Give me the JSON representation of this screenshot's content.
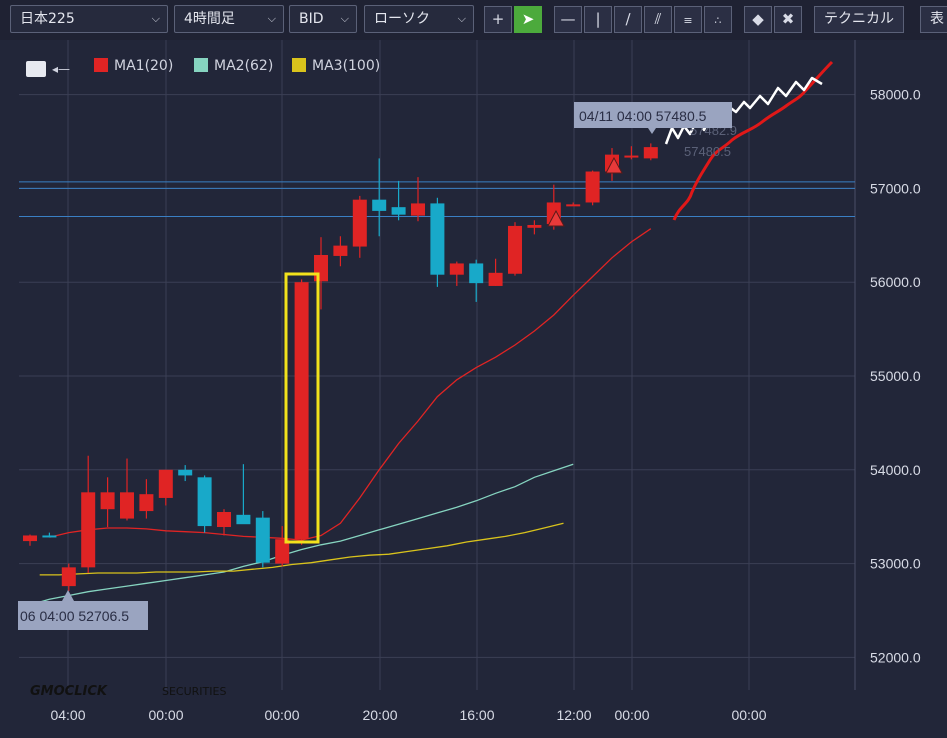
{
  "toolbar": {
    "symbol": "日本225",
    "timeframe": "4時間足",
    "price_type": "BID",
    "chart_style": "ローソク",
    "technical_label": "テクニカル",
    "overflow_label": "表"
  },
  "legend": {
    "ma1": {
      "label": "MA1(20)",
      "color": "#e02424"
    },
    "ma2": {
      "label": "MA2(62)",
      "color": "#86d4c0"
    },
    "ma3": {
      "label": "MA3(100)",
      "color": "#d9c31c"
    }
  },
  "tooltips": {
    "top": "04/11 04:00 57480.5",
    "bottom": "06 04:00 52706.5",
    "ghost1": "57482.9",
    "ghost2": "57480.5"
  },
  "watermark": {
    "brand": "GMOCLICK",
    "sub": "SECURITIES"
  },
  "colors": {
    "up": "#e02424",
    "down": "#18a9c9",
    "grid": "#3b3f55",
    "hline": "#3a7fc4",
    "highlight": "#f2e21c"
  },
  "chart_data": {
    "type": "candlestick",
    "yticks": [
      "58000.0",
      "57000.0",
      "56000.0",
      "55000.0",
      "54000.0",
      "53000.0",
      "52000.0"
    ],
    "ylim": [
      51700,
      58450
    ],
    "xticks": [
      "04:00",
      "00:00",
      "00:00",
      "20:00",
      "16:00",
      "12:00",
      "00:00",
      "00:00"
    ],
    "hlines": [
      57070,
      57000,
      56700
    ],
    "candles": [
      {
        "o": 53240,
        "h": 53310,
        "l": 53190,
        "c": 53300
      },
      {
        "o": 53300,
        "h": 53330,
        "l": 53280,
        "c": 53290
      },
      {
        "o": 52760,
        "h": 53000,
        "l": 52707,
        "c": 52960
      },
      {
        "o": 52960,
        "h": 54150,
        "l": 52900,
        "c": 53760
      },
      {
        "o": 53580,
        "h": 53920,
        "l": 53390,
        "c": 53760
      },
      {
        "o": 53480,
        "h": 54120,
        "l": 53460,
        "c": 53760
      },
      {
        "o": 53560,
        "h": 53900,
        "l": 53480,
        "c": 53740
      },
      {
        "o": 53700,
        "h": 54000,
        "l": 53620,
        "c": 54000
      },
      {
        "o": 54000,
        "h": 54050,
        "l": 53880,
        "c": 53940
      },
      {
        "o": 53920,
        "h": 53940,
        "l": 53330,
        "c": 53400
      },
      {
        "o": 53390,
        "h": 53580,
        "l": 53300,
        "c": 53550
      },
      {
        "o": 53520,
        "h": 54060,
        "l": 53440,
        "c": 53420
      },
      {
        "o": 53490,
        "h": 53560,
        "l": 52960,
        "c": 53010
      },
      {
        "o": 53000,
        "h": 53400,
        "l": 52970,
        "c": 53260
      },
      {
        "o": 53260,
        "h": 56030,
        "l": 53200,
        "c": 56000
      },
      {
        "o": 56010,
        "h": 56480,
        "l": 55710,
        "c": 56290
      },
      {
        "o": 56280,
        "h": 56490,
        "l": 56170,
        "c": 56390
      },
      {
        "o": 56380,
        "h": 56920,
        "l": 56260,
        "c": 56880
      },
      {
        "o": 56880,
        "h": 57320,
        "l": 56490,
        "c": 56760
      },
      {
        "o": 56800,
        "h": 57080,
        "l": 56660,
        "c": 56720
      },
      {
        "o": 56710,
        "h": 57120,
        "l": 56650,
        "c": 56840
      },
      {
        "o": 56840,
        "h": 56900,
        "l": 55950,
        "c": 56080
      },
      {
        "o": 56080,
        "h": 56220,
        "l": 55960,
        "c": 56200
      },
      {
        "o": 56200,
        "h": 56240,
        "l": 55790,
        "c": 55990
      },
      {
        "o": 55960,
        "h": 56250,
        "l": 55960,
        "c": 56100
      },
      {
        "o": 56090,
        "h": 56640,
        "l": 56070,
        "c": 56600
      },
      {
        "o": 56580,
        "h": 56660,
        "l": 56510,
        "c": 56610
      },
      {
        "o": 56620,
        "h": 57040,
        "l": 56560,
        "c": 56850
      },
      {
        "o": 56830,
        "h": 56850,
        "l": 56820,
        "c": 56830
      },
      {
        "o": 56850,
        "h": 57190,
        "l": 56820,
        "c": 57180
      },
      {
        "o": 57180,
        "h": 57430,
        "l": 57080,
        "c": 57360
      },
      {
        "o": 57350,
        "h": 57450,
        "l": 57310,
        "c": 57350
      },
      {
        "o": 57320,
        "h": 57480,
        "l": 57300,
        "c": 57440
      }
    ],
    "ma1": [
      53280,
      53330,
      53360,
      53380,
      53380,
      53370,
      53350,
      53340,
      53330,
      53310,
      53290,
      53280,
      53270,
      53250,
      53300,
      53430,
      53700,
      54000,
      54280,
      54520,
      54780,
      54960,
      55090,
      55200,
      55330,
      55480,
      55650,
      55860,
      56060,
      56260,
      56430,
      56570
    ],
    "ma2": [
      52560,
      52620,
      52660,
      52700,
      52730,
      52760,
      52790,
      52820,
      52850,
      52880,
      52910,
      52970,
      53020,
      53090,
      53150,
      53200,
      53240,
      53300,
      53360,
      53420,
      53480,
      53540,
      53600,
      53670,
      53750,
      53820,
      53920,
      53990,
      54060
    ],
    "ma3": [
      52880,
      52880,
      52890,
      52900,
      52900,
      52900,
      52910,
      52910,
      52910,
      52920,
      52920,
      52940,
      52960,
      52990,
      53010,
      53040,
      53070,
      53090,
      53100,
      53130,
      53160,
      53190,
      53230,
      53260,
      53290,
      53330,
      53380,
      53430
    ]
  }
}
